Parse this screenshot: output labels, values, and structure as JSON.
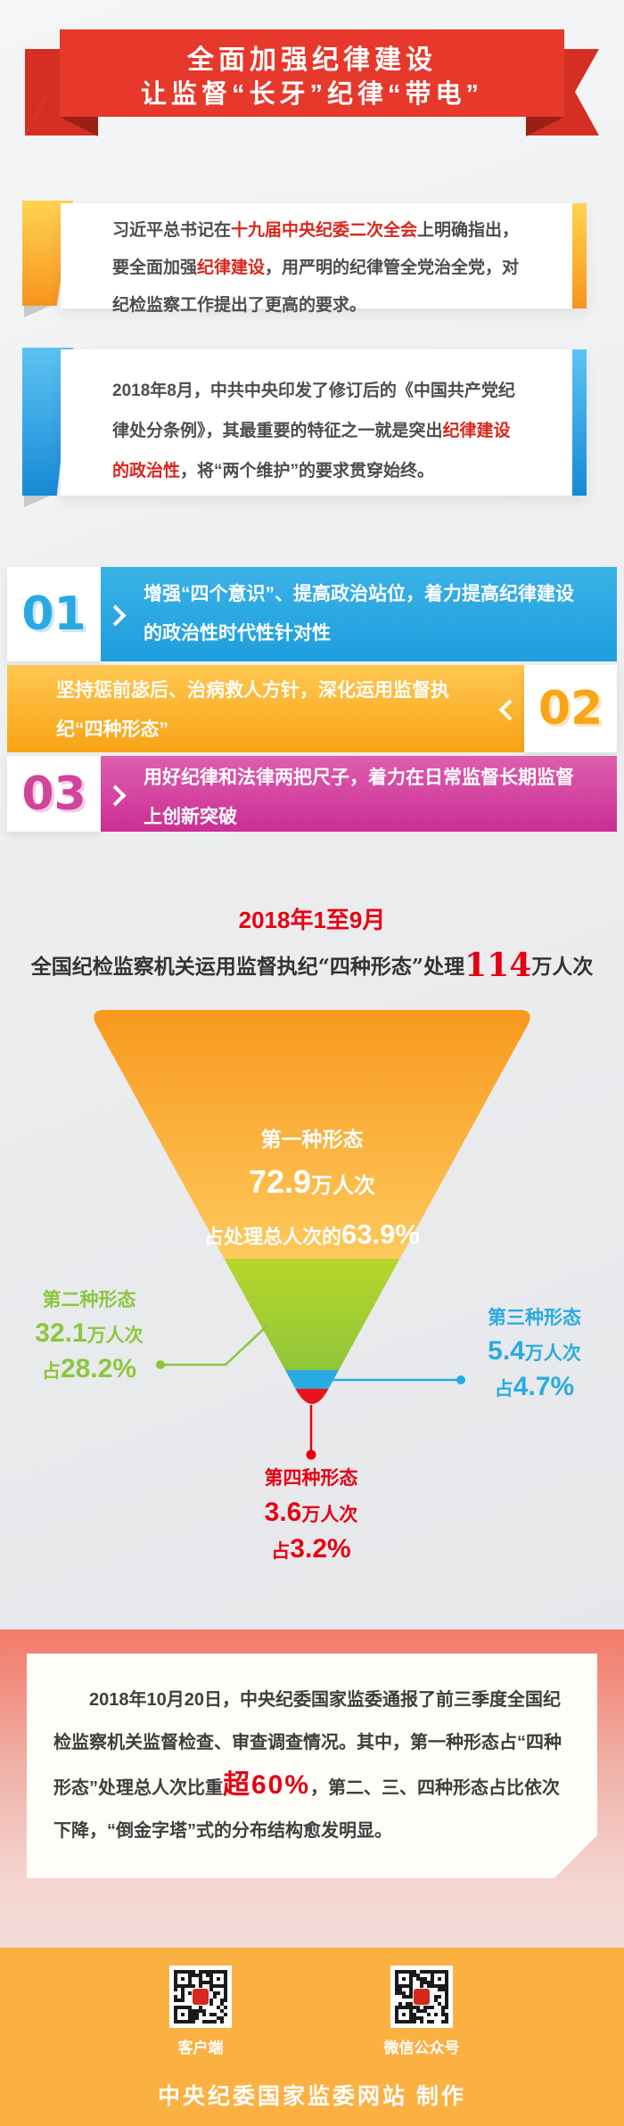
{
  "banner": {
    "line1": "全面加强纪律建设",
    "line2": "让监督“长牙”纪律“带电”"
  },
  "intro": {
    "card1_html": "习近平总书记在<em>十九届中央纪委二次全会</em>上明确指出，<br>要全面加强<em>纪律建设</em>，用严明的纪律管全党治全党，对<br>纪检监察工作提出了更高的要求。",
    "card2_html": "2018年8月，中共中央印发了修订后的《中国共产党纪<br>律处分条例》，其最重要的特征之一就是突出<em>纪律建设</em><br><em>的政治性</em>，将“两个维护”的要求贯穿始终。"
  },
  "items": [
    {
      "num": "01",
      "text": "增强“四个意识”、提高政治站位，着力提高纪律建设的政治性时代性针对性"
    },
    {
      "num": "02",
      "text": "坚持惩前毖后、治病救人方针，深化运用监督执纪“四种形态”"
    },
    {
      "num": "03",
      "text": "用好纪律和法律两把尺子，着力在日常监督长期监督上创新突破"
    }
  ],
  "chart": {
    "period": "2018年1至9月",
    "subtitle_html": "全国纪检监察机关运用监督执纪“四种形态”处理<b>114</b>万人次",
    "stage1_name": "第一种形态",
    "stage1_value_html": "<b>72.9</b>万人次",
    "stage1_share_html": "占处理总人次的<b>63.9%</b>",
    "stage2_name": "第二种形态",
    "stage2_value_html": "<b>32.1</b>万人次",
    "stage2_share_html": "占<b>28.2%</b>",
    "stage3_name": "第三种形态",
    "stage3_value_html": "<b>5.4</b>万人次",
    "stage3_share_html": "占<b>4.7%</b>",
    "stage4_name": "第四种形态",
    "stage4_value_html": "<b>3.6</b>万人次",
    "stage4_share_html": "占<b>3.2%</b>"
  },
  "chart_data": {
    "type": "funnel",
    "title": "2018年1至9月",
    "subtitle": "全国纪检监察机关运用监督执纪“四种形态”处理114万人次",
    "total": {
      "value": 114,
      "unit": "万人次"
    },
    "stages": [
      {
        "name": "第一种形态",
        "value": 72.9,
        "unit": "万人次",
        "share_pct": 63.9,
        "share_label": "占处理总人次的63.9%",
        "color": "#f8991d"
      },
      {
        "name": "第二种形态",
        "value": 32.1,
        "unit": "万人次",
        "share_pct": 28.2,
        "share_label": "占28.2%",
        "color": "#a6ce27"
      },
      {
        "name": "第三种形态",
        "value": 5.4,
        "unit": "万人次",
        "share_pct": 4.7,
        "share_label": "占4.7%",
        "color": "#29abe2"
      },
      {
        "name": "第四种形态",
        "value": 3.6,
        "unit": "万人次",
        "share_pct": 3.2,
        "share_label": "占3.2%",
        "color": "#e8131c"
      }
    ]
  },
  "report": {
    "html": "2018年10月20日，中央纪委国家监委通报了前三季度全国纪检监察机关监督检查、审查调查情况。其中，第一种形态占“四种形态”处理总人次比重<strong>超60%</strong>，第二、三、四种形态占比依次下降，“倒金字塔”式的分布结构愈发明显。"
  },
  "footer": {
    "qr_label_left": "客户端",
    "qr_label_right": "微信公众号",
    "credit": "中央纪委国家监委网站 制作"
  }
}
